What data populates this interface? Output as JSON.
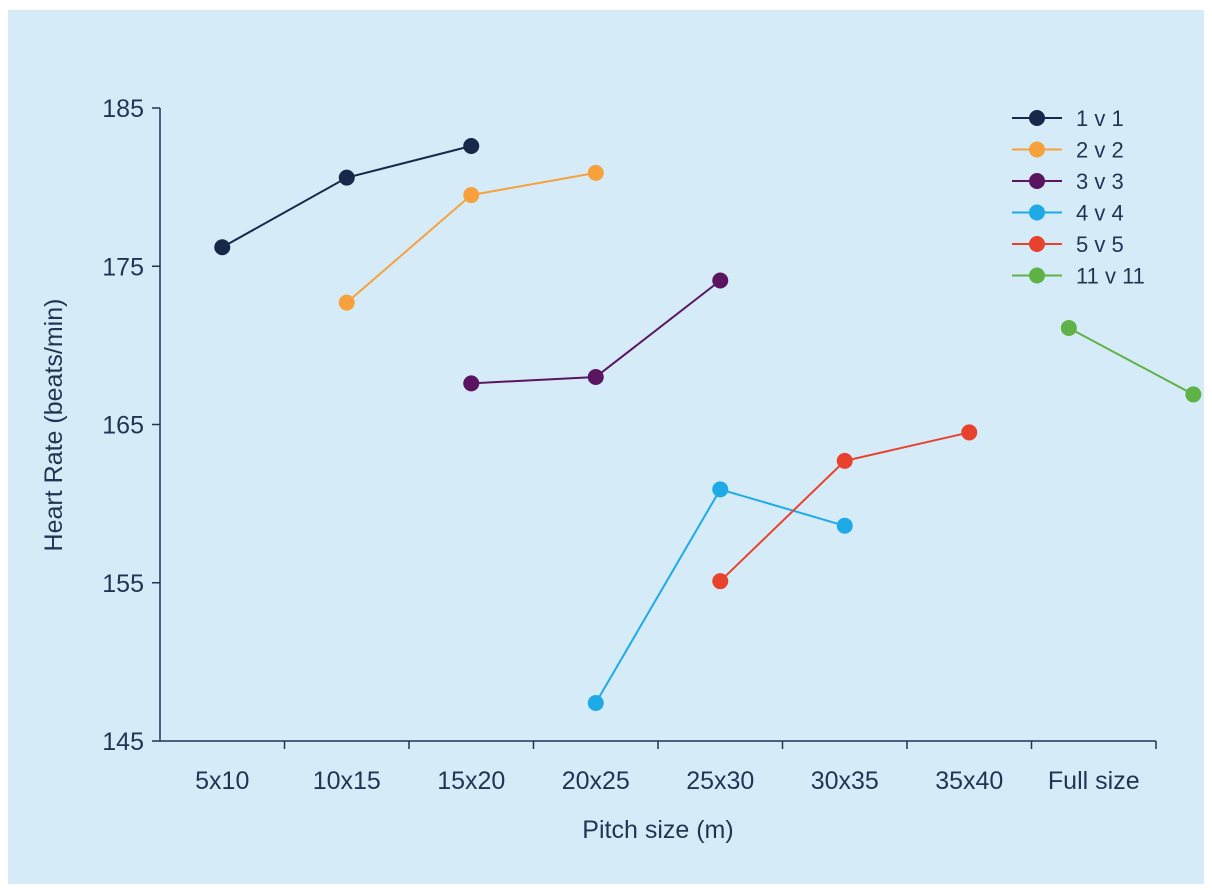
{
  "chart_data": {
    "type": "line",
    "xlabel": "Pitch size (m)",
    "ylabel": "Heart Rate (beats/min)",
    "ylim": [
      145,
      185
    ],
    "yticks": [
      "145",
      "155",
      "165",
      "175",
      "185"
    ],
    "categories": [
      "5x10",
      "10x15",
      "15x20",
      "20x25",
      "25x30",
      "30x35",
      "35x40",
      "Full size"
    ],
    "grid": false,
    "legend_position": "top-right",
    "series": [
      {
        "name": "1 v 1",
        "color": "#17284a",
        "points": [
          [
            0.5,
            176.2
          ],
          [
            1.5,
            180.6
          ],
          [
            2.5,
            182.6
          ]
        ]
      },
      {
        "name": "2 v 2",
        "color": "#f7a13c",
        "points": [
          [
            1.5,
            172.7
          ],
          [
            2.5,
            179.5
          ],
          [
            3.5,
            180.9
          ]
        ]
      },
      {
        "name": "3 v 3",
        "color": "#5b1460",
        "points": [
          [
            2.5,
            167.6
          ],
          [
            3.5,
            168.0
          ],
          [
            4.5,
            174.1
          ]
        ]
      },
      {
        "name": "4 v 4",
        "color": "#1eaae7",
        "points": [
          [
            3.5,
            147.4
          ],
          [
            4.5,
            160.9
          ],
          [
            5.5,
            158.6
          ]
        ]
      },
      {
        "name": "5 v 5",
        "color": "#e8412e",
        "points": [
          [
            4.5,
            155.1
          ],
          [
            5.5,
            162.7
          ],
          [
            6.5,
            164.5
          ]
        ]
      },
      {
        "name": "11 v 11",
        "color": "#5fb246",
        "points": [
          [
            7.3,
            171.1
          ],
          [
            8.3,
            166.9
          ]
        ]
      }
    ]
  }
}
